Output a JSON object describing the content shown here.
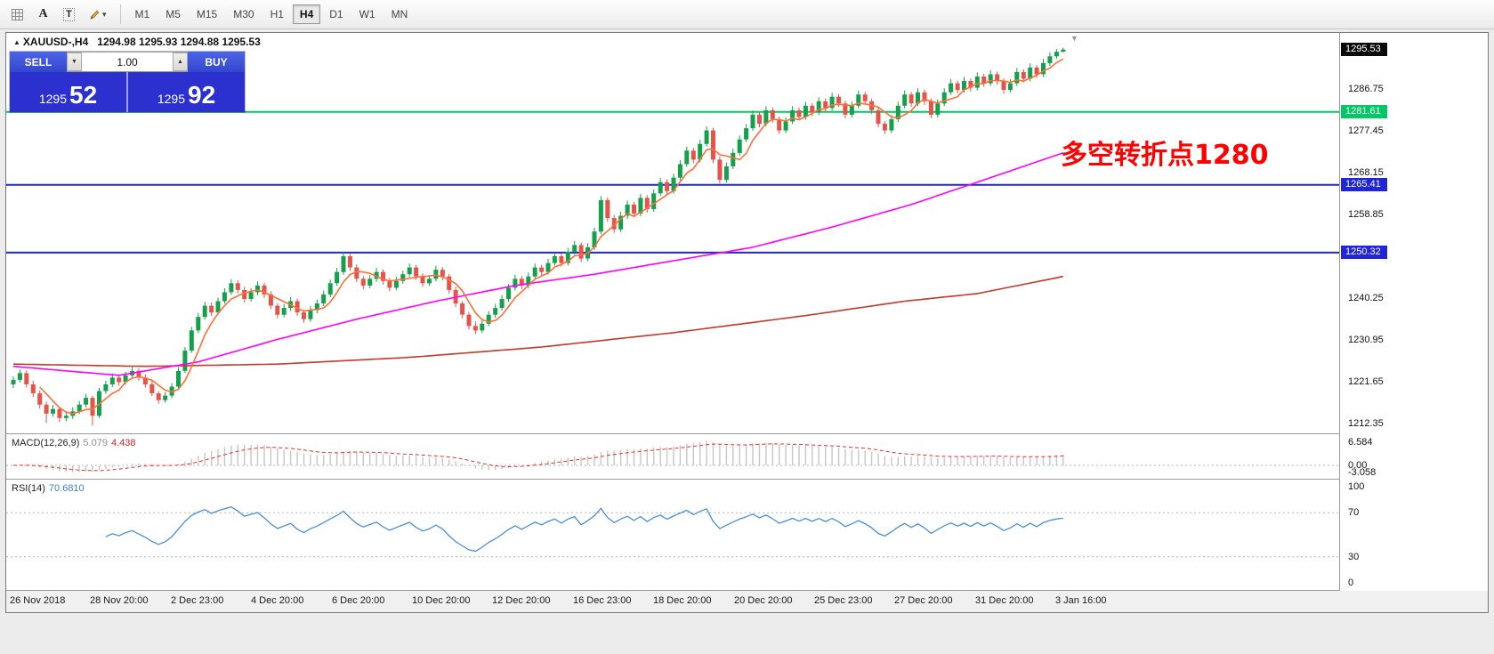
{
  "colors": {
    "up": "#14A04C",
    "down": "#E5534A",
    "ma_fast": "#FF7038",
    "ma_mid": "#FF00FF",
    "ma_slow": "#C0392B",
    "level_green": "#00C864",
    "level_blue": "#2026D8",
    "current_label_bg": "#0A0A0A",
    "macd_hist": "#C6C6C6",
    "macd_signal": "#E03030",
    "rsi_line": "#4A8FD4",
    "annotation_red": "#FF0000"
  },
  "icons": {
    "font_tool": "A",
    "text_tool": "T",
    "caret_down": "▾",
    "spin_down": "▼",
    "spin_up": "▲",
    "symbol_marker": "▲",
    "shift_marker": "▼"
  },
  "toolbar": {
    "timeframes": [
      "M1",
      "M5",
      "M15",
      "M30",
      "H1",
      "H4",
      "D1",
      "W1",
      "MN"
    ],
    "active_timeframe": "H4"
  },
  "trade_panel": {
    "sell_label": "SELL",
    "buy_label": "BUY",
    "volume": "1.00",
    "sell_price_prefix": "1295",
    "sell_price_big": "52",
    "buy_price_prefix": "1295",
    "buy_price_big": "92"
  },
  "chart_data": {
    "type": "candlestick",
    "title": "XAUUSD-,H4",
    "ohlc_display": "1294.98 1295.93 1294.88 1295.53",
    "price_range": [
      1210.1,
      1299.2
    ],
    "y_ticks": [
      "1286.75",
      "1277.45",
      "1268.15",
      "1258.85",
      "1240.25",
      "1230.95",
      "1221.65",
      "1212.35"
    ],
    "x_labels": [
      "26 Nov 2018",
      "28 Nov 20:00",
      "2 Dec 23:00",
      "4 Dec 20:00",
      "6 Dec 20:00",
      "10 Dec 20:00",
      "12 Dec 20:00",
      "16 Dec 23:00",
      "18 Dec 20:00",
      "20 Dec 20:00",
      "25 Dec 23:00",
      "27 Dec 20:00",
      "31 Dec 20:00",
      "3 Jan 16:00"
    ],
    "levels": [
      {
        "price": 1295.53,
        "label": "1295.53",
        "type": "current"
      },
      {
        "price": 1281.61,
        "label": "1281.61",
        "type": "green-line"
      },
      {
        "price": 1265.41,
        "label": "1265.41",
        "type": "blue-line"
      },
      {
        "price": 1250.32,
        "label": "1250.32",
        "type": "blue-line"
      }
    ],
    "annotation": {
      "text": "多空转折点1280",
      "color": "#FF0000"
    },
    "candles": [
      [
        1221.0,
        1222.8,
        1220.2,
        1222.0
      ],
      [
        1222.0,
        1224.3,
        1221.4,
        1223.5
      ],
      [
        1223.5,
        1224.1,
        1220.3,
        1221.0
      ],
      [
        1221.0,
        1221.8,
        1218.2,
        1219.0
      ],
      [
        1219.0,
        1219.6,
        1215.6,
        1216.5
      ],
      [
        1216.5,
        1217.2,
        1212.4,
        1214.5
      ],
      [
        1214.5,
        1216.4,
        1213.8,
        1215.5
      ],
      [
        1215.5,
        1216.0,
        1212.6,
        1213.5
      ],
      [
        1213.5,
        1215.0,
        1212.8,
        1214.0
      ],
      [
        1214.0,
        1215.9,
        1213.3,
        1215.0
      ],
      [
        1215.0,
        1217.3,
        1214.4,
        1216.5
      ],
      [
        1216.5,
        1218.9,
        1215.8,
        1218.0
      ],
      [
        1218.0,
        1218.5,
        1211.8,
        1214.0
      ],
      [
        1214.0,
        1220.2,
        1213.5,
        1219.5
      ],
      [
        1219.5,
        1221.8,
        1218.9,
        1221.0
      ],
      [
        1221.0,
        1223.4,
        1220.4,
        1222.5
      ],
      [
        1222.5,
        1223.1,
        1220.7,
        1221.5
      ],
      [
        1221.5,
        1223.8,
        1220.9,
        1223.0
      ],
      [
        1223.0,
        1224.9,
        1222.3,
        1224.0
      ],
      [
        1224.0,
        1224.6,
        1221.8,
        1222.5
      ],
      [
        1222.5,
        1223.2,
        1220.3,
        1221.0
      ],
      [
        1221.0,
        1221.7,
        1218.4,
        1219.0
      ],
      [
        1219.0,
        1219.5,
        1216.7,
        1217.5
      ],
      [
        1217.5,
        1219.3,
        1216.9,
        1218.5
      ],
      [
        1218.5,
        1221.3,
        1217.9,
        1220.5
      ],
      [
        1220.5,
        1224.8,
        1220.0,
        1224.0
      ],
      [
        1224.0,
        1229.3,
        1223.5,
        1228.5
      ],
      [
        1228.5,
        1233.8,
        1228.0,
        1233.0
      ],
      [
        1233.0,
        1236.9,
        1232.4,
        1236.0
      ],
      [
        1236.0,
        1239.4,
        1235.4,
        1238.5
      ],
      [
        1238.5,
        1239.2,
        1236.2,
        1237.0
      ],
      [
        1237.0,
        1240.3,
        1236.5,
        1239.5
      ],
      [
        1239.5,
        1242.4,
        1238.9,
        1241.5
      ],
      [
        1241.5,
        1244.4,
        1240.9,
        1243.5
      ],
      [
        1243.5,
        1244.2,
        1241.2,
        1242.0
      ],
      [
        1242.0,
        1242.7,
        1239.2,
        1240.0
      ],
      [
        1240.0,
        1242.4,
        1239.4,
        1241.5
      ],
      [
        1241.5,
        1243.9,
        1240.8,
        1243.0
      ],
      [
        1243.0,
        1243.6,
        1240.2,
        1241.0
      ],
      [
        1241.0,
        1241.7,
        1237.7,
        1238.5
      ],
      [
        1238.5,
        1239.1,
        1235.7,
        1236.5
      ],
      [
        1236.5,
        1238.9,
        1235.9,
        1238.0
      ],
      [
        1238.0,
        1240.4,
        1237.3,
        1239.5
      ],
      [
        1239.5,
        1240.1,
        1236.2,
        1237.0
      ],
      [
        1237.0,
        1237.6,
        1234.7,
        1235.5
      ],
      [
        1235.5,
        1238.4,
        1234.9,
        1237.5
      ],
      [
        1237.5,
        1239.9,
        1236.8,
        1239.0
      ],
      [
        1239.0,
        1241.9,
        1238.4,
        1241.0
      ],
      [
        1241.0,
        1244.3,
        1240.4,
        1243.5
      ],
      [
        1243.5,
        1246.9,
        1242.9,
        1246.0
      ],
      [
        1246.0,
        1250.4,
        1245.4,
        1249.5
      ],
      [
        1249.5,
        1250.1,
        1246.2,
        1247.0
      ],
      [
        1247.0,
        1247.7,
        1243.7,
        1244.5
      ],
      [
        1244.5,
        1245.1,
        1242.2,
        1243.0
      ],
      [
        1243.0,
        1245.3,
        1242.4,
        1244.5
      ],
      [
        1244.5,
        1246.9,
        1243.8,
        1246.0
      ],
      [
        1246.0,
        1246.6,
        1243.2,
        1244.0
      ],
      [
        1244.0,
        1244.7,
        1241.7,
        1242.5
      ],
      [
        1242.5,
        1244.9,
        1241.9,
        1244.0
      ],
      [
        1244.0,
        1246.3,
        1243.4,
        1245.5
      ],
      [
        1245.5,
        1247.9,
        1244.8,
        1247.0
      ],
      [
        1247.0,
        1247.6,
        1244.2,
        1245.0
      ],
      [
        1245.0,
        1245.7,
        1242.7,
        1243.5
      ],
      [
        1243.5,
        1245.3,
        1242.9,
        1244.5
      ],
      [
        1244.5,
        1247.4,
        1243.9,
        1246.5
      ],
      [
        1246.5,
        1247.1,
        1244.2,
        1245.0
      ],
      [
        1245.0,
        1245.6,
        1241.2,
        1242.0
      ],
      [
        1242.0,
        1242.7,
        1238.2,
        1239.0
      ],
      [
        1239.0,
        1239.5,
        1235.7,
        1236.5
      ],
      [
        1236.5,
        1237.1,
        1233.2,
        1234.0
      ],
      [
        1234.0,
        1235.0,
        1232.2,
        1233.0
      ],
      [
        1233.0,
        1235.4,
        1232.4,
        1234.5
      ],
      [
        1234.5,
        1237.3,
        1233.9,
        1236.5
      ],
      [
        1236.5,
        1238.9,
        1235.8,
        1238.0
      ],
      [
        1238.0,
        1240.9,
        1237.4,
        1240.0
      ],
      [
        1240.0,
        1243.3,
        1239.4,
        1242.5
      ],
      [
        1242.5,
        1245.4,
        1241.9,
        1244.5
      ],
      [
        1244.5,
        1245.1,
        1242.2,
        1243.0
      ],
      [
        1243.0,
        1245.9,
        1242.4,
        1245.0
      ],
      [
        1245.0,
        1247.9,
        1244.3,
        1247.0
      ],
      [
        1247.0,
        1247.6,
        1245.2,
        1246.0
      ],
      [
        1246.0,
        1248.9,
        1245.4,
        1248.0
      ],
      [
        1248.0,
        1250.3,
        1247.4,
        1249.5
      ],
      [
        1249.5,
        1250.1,
        1247.2,
        1248.0
      ],
      [
        1248.0,
        1251.4,
        1247.4,
        1250.5
      ],
      [
        1250.5,
        1252.9,
        1249.8,
        1252.0
      ],
      [
        1252.0,
        1252.6,
        1248.2,
        1249.0
      ],
      [
        1249.0,
        1252.4,
        1248.4,
        1251.5
      ],
      [
        1251.5,
        1255.9,
        1250.9,
        1255.0
      ],
      [
        1255.0,
        1262.9,
        1254.4,
        1262.0
      ],
      [
        1262.0,
        1262.6,
        1257.2,
        1258.0
      ],
      [
        1258.0,
        1258.7,
        1254.7,
        1255.5
      ],
      [
        1255.5,
        1259.4,
        1254.9,
        1258.5
      ],
      [
        1258.5,
        1261.9,
        1257.8,
        1261.0
      ],
      [
        1261.0,
        1261.6,
        1258.2,
        1259.0
      ],
      [
        1259.0,
        1263.4,
        1258.4,
        1262.5
      ],
      [
        1262.5,
        1263.1,
        1259.2,
        1260.0
      ],
      [
        1260.0,
        1264.4,
        1259.4,
        1263.5
      ],
      [
        1263.5,
        1266.9,
        1262.9,
        1266.0
      ],
      [
        1266.0,
        1266.6,
        1263.2,
        1264.0
      ],
      [
        1264.0,
        1267.9,
        1263.4,
        1267.0
      ],
      [
        1267.0,
        1270.9,
        1266.4,
        1270.0
      ],
      [
        1270.0,
        1273.9,
        1269.4,
        1273.0
      ],
      [
        1273.0,
        1273.6,
        1270.2,
        1271.0
      ],
      [
        1271.0,
        1275.4,
        1270.4,
        1274.5
      ],
      [
        1274.5,
        1278.4,
        1273.9,
        1277.5
      ],
      [
        1277.5,
        1278.1,
        1270.2,
        1271.0
      ],
      [
        1271.0,
        1271.7,
        1265.7,
        1266.5
      ],
      [
        1266.5,
        1270.4,
        1265.9,
        1269.5
      ],
      [
        1269.5,
        1273.4,
        1268.9,
        1272.5
      ],
      [
        1272.5,
        1276.4,
        1271.9,
        1275.5
      ],
      [
        1275.5,
        1278.9,
        1274.9,
        1278.0
      ],
      [
        1278.0,
        1281.9,
        1277.4,
        1281.0
      ],
      [
        1281.0,
        1281.6,
        1278.2,
        1279.0
      ],
      [
        1279.0,
        1282.9,
        1278.4,
        1282.0
      ],
      [
        1282.0,
        1282.6,
        1279.2,
        1280.0
      ],
      [
        1280.0,
        1280.6,
        1276.7,
        1277.5
      ],
      [
        1277.5,
        1280.4,
        1276.9,
        1279.5
      ],
      [
        1279.5,
        1282.9,
        1278.9,
        1282.0
      ],
      [
        1282.0,
        1282.6,
        1279.7,
        1280.5
      ],
      [
        1280.5,
        1283.9,
        1279.9,
        1283.0
      ],
      [
        1283.0,
        1283.6,
        1280.7,
        1281.5
      ],
      [
        1281.5,
        1284.9,
        1280.9,
        1284.0
      ],
      [
        1284.0,
        1284.6,
        1281.7,
        1282.5
      ],
      [
        1282.5,
        1285.9,
        1281.9,
        1285.0
      ],
      [
        1285.0,
        1285.6,
        1282.7,
        1283.5
      ],
      [
        1283.5,
        1284.1,
        1280.2,
        1281.0
      ],
      [
        1281.0,
        1283.9,
        1280.4,
        1283.0
      ],
      [
        1283.0,
        1286.4,
        1282.4,
        1285.5
      ],
      [
        1285.5,
        1286.1,
        1283.2,
        1284.0
      ],
      [
        1284.0,
        1284.6,
        1281.2,
        1282.0
      ],
      [
        1282.0,
        1282.7,
        1278.2,
        1279.0
      ],
      [
        1279.0,
        1279.6,
        1276.7,
        1277.5
      ],
      [
        1277.5,
        1280.9,
        1276.9,
        1280.0
      ],
      [
        1280.0,
        1283.9,
        1279.4,
        1283.0
      ],
      [
        1283.0,
        1286.4,
        1282.4,
        1285.5
      ],
      [
        1285.5,
        1286.1,
        1282.7,
        1283.5
      ],
      [
        1283.5,
        1286.9,
        1282.9,
        1286.0
      ],
      [
        1286.0,
        1286.6,
        1283.2,
        1284.0
      ],
      [
        1284.0,
        1284.6,
        1280.2,
        1281.0
      ],
      [
        1281.0,
        1284.4,
        1280.4,
        1283.5
      ],
      [
        1283.5,
        1286.9,
        1282.9,
        1286.0
      ],
      [
        1286.0,
        1288.9,
        1285.4,
        1288.0
      ],
      [
        1288.0,
        1288.6,
        1285.7,
        1286.5
      ],
      [
        1286.5,
        1289.4,
        1285.9,
        1288.5
      ],
      [
        1288.5,
        1289.1,
        1286.2,
        1287.0
      ],
      [
        1287.0,
        1290.4,
        1286.4,
        1289.5
      ],
      [
        1289.5,
        1290.1,
        1287.2,
        1288.0
      ],
      [
        1288.0,
        1290.9,
        1287.4,
        1290.0
      ],
      [
        1290.0,
        1290.6,
        1287.7,
        1288.5
      ],
      [
        1288.5,
        1289.1,
        1285.7,
        1286.5
      ],
      [
        1286.5,
        1288.9,
        1285.9,
        1288.0
      ],
      [
        1288.0,
        1291.4,
        1287.4,
        1290.5
      ],
      [
        1290.5,
        1291.1,
        1288.2,
        1289.0
      ],
      [
        1289.0,
        1292.4,
        1288.4,
        1291.5
      ],
      [
        1291.5,
        1292.1,
        1289.2,
        1290.0
      ],
      [
        1290.0,
        1293.4,
        1289.4,
        1292.5
      ],
      [
        1292.5,
        1294.9,
        1291.9,
        1294.0
      ],
      [
        1294.0,
        1295.6,
        1293.4,
        1295.0
      ],
      [
        1295.0,
        1295.9,
        1294.9,
        1295.5
      ]
    ],
    "overlays": {
      "ma_fast_period": 5,
      "ma_mid_anchors": [
        [
          0,
          1225
        ],
        [
          16,
          1223
        ],
        [
          28,
          1226
        ],
        [
          40,
          1231
        ],
        [
          52,
          1235.5
        ],
        [
          64,
          1239.5
        ],
        [
          76,
          1243
        ],
        [
          88,
          1245.5
        ],
        [
          100,
          1248.5
        ],
        [
          112,
          1251.5
        ],
        [
          124,
          1256
        ],
        [
          136,
          1261
        ],
        [
          146,
          1266
        ],
        [
          153,
          1269.5
        ],
        [
          159,
          1272.5
        ]
      ],
      "ma_slow_anchors": [
        [
          0,
          1225.5
        ],
        [
          20,
          1225
        ],
        [
          40,
          1225.5
        ],
        [
          60,
          1227
        ],
        [
          80,
          1229.3
        ],
        [
          100,
          1232.5
        ],
        [
          120,
          1236.3
        ],
        [
          135,
          1239.5
        ],
        [
          146,
          1241.2
        ],
        [
          159,
          1245
        ]
      ]
    },
    "indicators": {
      "macd": {
        "label": "MACD(12,26,9)",
        "values": [
          "5.079",
          "4.438"
        ],
        "y_ticks": [
          "6.584",
          "0.00",
          "-3.058"
        ],
        "params": [
          12,
          26,
          9
        ]
      },
      "rsi": {
        "label": "RSI(14)",
        "value": "70.6810",
        "y_ticks": [
          "100",
          "70",
          "30",
          "0"
        ],
        "levels": [
          70,
          30
        ],
        "period": 14
      }
    }
  }
}
